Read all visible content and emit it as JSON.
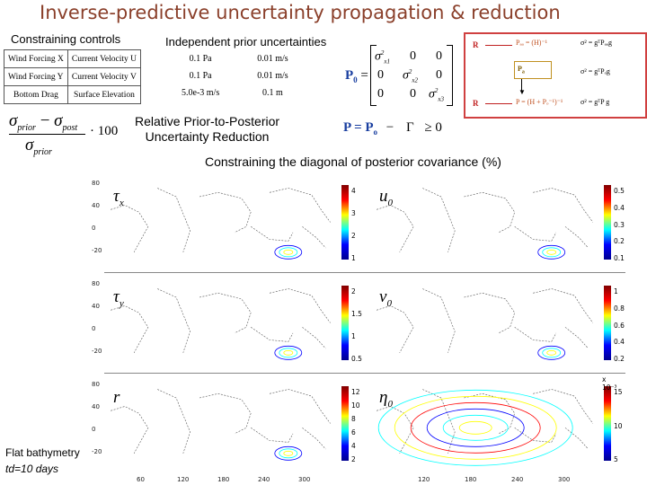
{
  "title": "Inverse-predictive uncertainty propagation & reduction",
  "headers": {
    "controls": "Constraining controls",
    "priors": "Independent prior uncertainties"
  },
  "controls_table": [
    [
      "Wind Forcing X",
      "Current Velocity U"
    ],
    [
      "Wind Forcing Y",
      "Current Velocity V"
    ],
    [
      "Bottom Drag",
      "Surface Elevation"
    ]
  ],
  "uncertainty_table": [
    [
      "0.1 Pa",
      "0.01 m/s"
    ],
    [
      "0.1 Pa",
      "0.01 m/s"
    ],
    [
      "5.0e-3 m/s",
      "0.1 m"
    ]
  ],
  "reduction_label": [
    "Relative Prior-to-Posterior",
    "Uncertainty Reduction"
  ],
  "posterior_caption": "Constraining the diagonal of posterior covariance (%)",
  "bottom_note": [
    "Flat bathymetry",
    "td=10 days"
  ],
  "formula": {
    "sigma": "σ",
    "prior": "prior",
    "post": "post",
    "minus": "−",
    "times": "· 100"
  },
  "matrix": {
    "p0": "P",
    "p0_sub": "0",
    "equals": "=",
    "zero": "0",
    "entries": [
      "σ",
      "σ",
      "σ"
    ],
    "subs": [
      "x1",
      "x2",
      "x3"
    ],
    "power": "2",
    "p_eq": "P = P",
    "p_sub": "o",
    "minus": "−",
    "gamma": "Γ",
    "geq": "≥ 0"
  },
  "diagram": {
    "r_label": "R",
    "r_label2": "R",
    "pbox1": "P",
    "pbox1_sub": "a",
    "row1_mid": "Pₐₐ = (H)⁻¹",
    "row1_right": "σ² = gᵀPₐₐg",
    "row2_right": "σ² = gᵀPₒg",
    "row3_mid": "P = (H + Pₒ⁻¹)⁻¹",
    "row3_right": "σ² = gᵀP g"
  },
  "panels": [
    {
      "label": "τ",
      "sub": "x",
      "ticks": [
        "4",
        "3",
        "2",
        "1"
      ]
    },
    {
      "label": "u",
      "sub": "0",
      "ticks": [
        "0.5",
        "0.4",
        "0.3",
        "0.2",
        "0.1"
      ]
    },
    {
      "label": "τ",
      "sub": "y",
      "ticks": [
        "2",
        "1.5",
        "1",
        "0.5"
      ]
    },
    {
      "label": "v",
      "sub": "0",
      "ticks": [
        "1",
        "0.8",
        "0.6",
        "0.4",
        "0.2"
      ]
    },
    {
      "label": "r",
      "sub": "",
      "ticks": [
        "12",
        "10",
        "8",
        "6",
        "4",
        "2"
      ]
    },
    {
      "label": "η",
      "sub": "0",
      "ticks": [
        "15",
        "10",
        "5"
      ],
      "exp": "x 10⁻³"
    }
  ],
  "lat_labels": [
    "80",
    "40",
    "0",
    "-20"
  ],
  "lon_labels": [
    "60",
    "120",
    "180",
    "240",
    "300"
  ],
  "lon_labels_right": [
    "120",
    "180",
    "240",
    "300"
  ]
}
